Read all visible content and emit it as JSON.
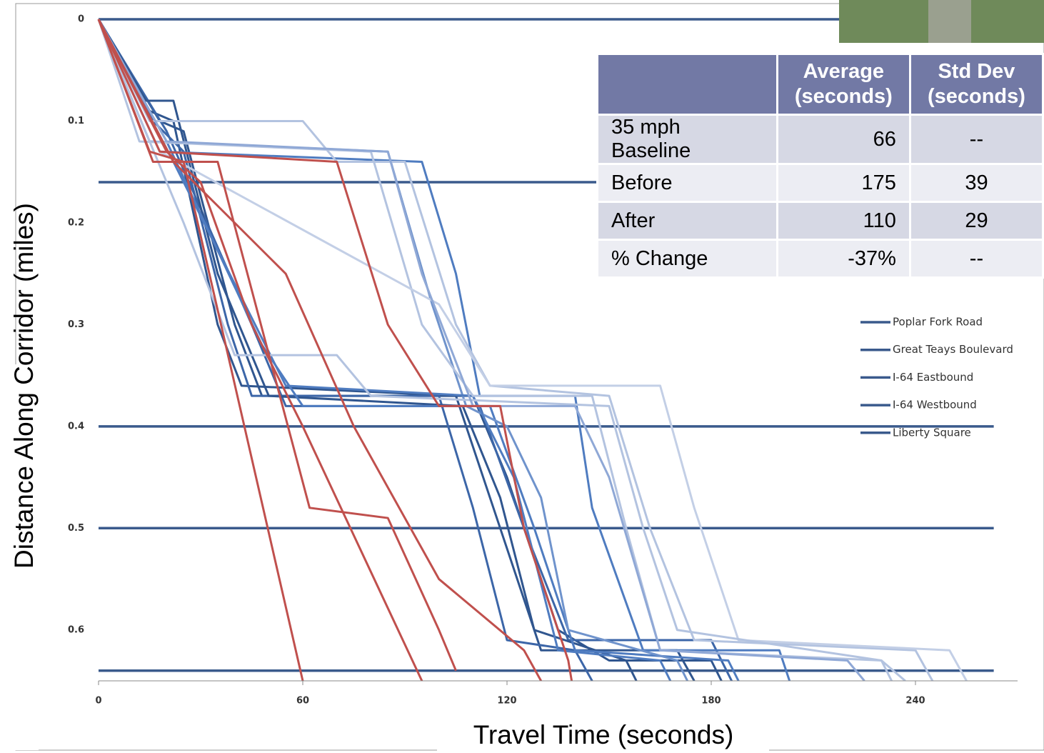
{
  "chart_data": {
    "type": "line",
    "x_label": "Travel Time (seconds)",
    "y_label": "Distance Along Corridor (miles)",
    "xlim": [
      0,
      270
    ],
    "xticks": [
      0,
      60,
      120,
      180,
      240
    ],
    "ylim": [
      0.65,
      0
    ],
    "yticks": [
      0,
      0.1,
      0.2,
      0.3,
      0.4,
      0.5,
      0.6
    ],
    "series": [
      {
        "name": "Poplar Fork Road",
        "color": "#3a5a8c",
        "x": [
          0,
          263
        ],
        "values": [
          0,
          0
        ]
      },
      {
        "name": "Great Teays Boulevard",
        "color": "#3a5a8c",
        "x": [
          0,
          263
        ],
        "values": [
          0.16,
          0.16
        ]
      },
      {
        "name": "I-64 Eastbound",
        "color": "#3a5a8c",
        "x": [
          0,
          263
        ],
        "values": [
          0.4,
          0.4
        ]
      },
      {
        "name": "I-64 Westbound",
        "color": "#3a5a8c",
        "x": [
          0,
          263
        ],
        "values": [
          0.5,
          0.5
        ]
      },
      {
        "name": "Liberty Square",
        "color": "#3a5a8c",
        "x": [
          0,
          263
        ],
        "values": [
          0.64,
          0.64
        ]
      }
    ],
    "trajectories": [
      {
        "color": "#30568f",
        "x": [
          0,
          18,
          25,
          40,
          48,
          110,
          120,
          135,
          150,
          180,
          183
        ],
        "values": [
          0,
          0.1,
          0.11,
          0.3,
          0.37,
          0.37,
          0.45,
          0.6,
          0.63,
          0.63,
          0.65
        ]
      },
      {
        "color": "#30568f",
        "x": [
          0,
          15,
          22,
          35,
          42,
          105,
          118,
          130,
          170,
          175
        ],
        "values": [
          0,
          0.09,
          0.1,
          0.3,
          0.36,
          0.37,
          0.5,
          0.62,
          0.62,
          0.65
        ]
      },
      {
        "color": "#3c66a8",
        "x": [
          0,
          20,
          45,
          55,
          112,
          125,
          138,
          180,
          186
        ],
        "values": [
          0,
          0.11,
          0.3,
          0.38,
          0.38,
          0.5,
          0.61,
          0.61,
          0.65
        ]
      },
      {
        "color": "#3c66a8",
        "x": [
          0,
          16,
          25,
          38,
          45,
          100,
          110,
          120,
          140,
          145
        ],
        "values": [
          0,
          0.1,
          0.13,
          0.3,
          0.37,
          0.37,
          0.48,
          0.61,
          0.62,
          0.65
        ]
      },
      {
        "color": "#30568f",
        "x": [
          0,
          14,
          22,
          35,
          50,
          107,
          118,
          128,
          155,
          158
        ],
        "values": [
          0,
          0.08,
          0.08,
          0.25,
          0.37,
          0.38,
          0.47,
          0.6,
          0.63,
          0.65
        ]
      },
      {
        "color": "#4f7cc0",
        "x": [
          0,
          20,
          48,
          60,
          115,
          128,
          140,
          185,
          188
        ],
        "values": [
          0,
          0.12,
          0.32,
          0.38,
          0.38,
          0.5,
          0.62,
          0.63,
          0.65
        ]
      },
      {
        "color": "#4f7cc0",
        "x": [
          0,
          18,
          95,
          105,
          112,
          140,
          145,
          160,
          200,
          203
        ],
        "values": [
          0,
          0.13,
          0.14,
          0.25,
          0.37,
          0.37,
          0.48,
          0.62,
          0.62,
          0.65
        ]
      },
      {
        "color": "#6f93cc",
        "x": [
          0,
          15,
          85,
          98,
          108,
          120,
          130,
          138,
          170,
          173
        ],
        "values": [
          0,
          0.12,
          0.13,
          0.28,
          0.38,
          0.4,
          0.47,
          0.6,
          0.63,
          0.65
        ]
      },
      {
        "color": "#4f7cc0",
        "x": [
          0,
          22,
          55,
          110,
          122,
          135,
          165,
          168
        ],
        "values": [
          0,
          0.14,
          0.36,
          0.37,
          0.45,
          0.62,
          0.63,
          0.65
        ]
      },
      {
        "color": "#b3c3e0",
        "x": [
          0,
          15,
          60,
          70,
          90,
          105,
          115,
          150,
          162,
          175,
          240,
          245
        ],
        "values": [
          0,
          0.1,
          0.1,
          0.14,
          0.14,
          0.3,
          0.36,
          0.37,
          0.5,
          0.61,
          0.62,
          0.65
        ]
      },
      {
        "color": "#b3c3e0",
        "x": [
          0,
          12,
          80,
          95,
          110,
          145,
          155,
          165,
          230,
          233
        ],
        "values": [
          0,
          0.12,
          0.13,
          0.3,
          0.37,
          0.37,
          0.5,
          0.62,
          0.63,
          0.65
        ]
      },
      {
        "color": "#c3cfe6",
        "x": [
          0,
          18,
          100,
          115,
          165,
          175,
          188,
          250,
          255
        ],
        "values": [
          0,
          0.13,
          0.28,
          0.36,
          0.36,
          0.48,
          0.61,
          0.62,
          0.65
        ]
      },
      {
        "color": "#b3c3e0",
        "x": [
          0,
          25,
          40,
          70,
          80,
          150,
          160,
          170,
          230,
          237
        ],
        "values": [
          0,
          0.2,
          0.33,
          0.33,
          0.37,
          0.38,
          0.5,
          0.6,
          0.63,
          0.65
        ]
      },
      {
        "color": "#8fa8d6",
        "x": [
          0,
          20,
          85,
          95,
          110,
          140,
          150,
          165,
          220,
          225
        ],
        "values": [
          0,
          0.12,
          0.13,
          0.25,
          0.38,
          0.38,
          0.45,
          0.62,
          0.63,
          0.65
        ]
      },
      {
        "color": "#c0504d",
        "x": [
          0,
          15,
          25,
          60
        ],
        "values": [
          0,
          0.13,
          0.14,
          0.65
        ]
      },
      {
        "color": "#c0504d",
        "x": [
          0,
          16,
          35,
          62,
          85,
          100,
          105
        ],
        "values": [
          0,
          0.14,
          0.14,
          0.48,
          0.49,
          0.6,
          0.64
        ]
      },
      {
        "color": "#c0504d",
        "x": [
          0,
          20,
          30,
          45,
          60,
          95
        ],
        "values": [
          0,
          0.13,
          0.16,
          0.3,
          0.4,
          0.65
        ]
      },
      {
        "color": "#c0504d",
        "x": [
          0,
          18,
          70,
          85,
          100,
          118,
          125,
          138,
          139
        ],
        "values": [
          0,
          0.13,
          0.14,
          0.3,
          0.38,
          0.38,
          0.5,
          0.63,
          0.65
        ]
      },
      {
        "color": "#c0504d",
        "x": [
          0,
          22,
          55,
          75,
          100,
          125,
          130
        ],
        "values": [
          0,
          0.14,
          0.25,
          0.4,
          0.55,
          0.62,
          0.65
        ]
      }
    ]
  },
  "table": {
    "header": [
      "Average (seconds)",
      "Std Dev (seconds)"
    ],
    "rows": [
      [
        "35 mph Baseline",
        "66",
        "--"
      ],
      [
        "Before",
        "175",
        "39"
      ],
      [
        "After",
        "110",
        "29"
      ],
      [
        "% Change",
        "-37%",
        "--"
      ]
    ]
  }
}
